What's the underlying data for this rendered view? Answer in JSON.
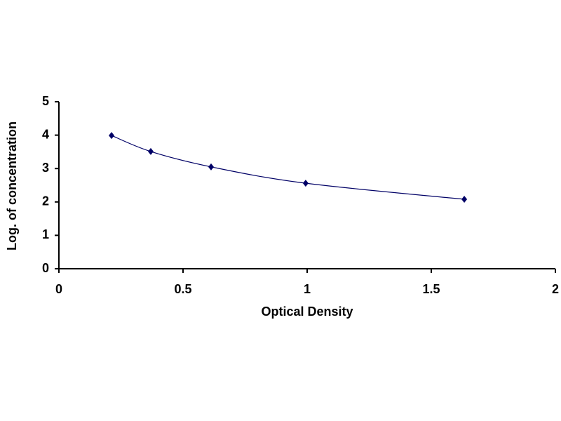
{
  "chart_data": {
    "type": "scatter",
    "line": "smooth",
    "x_label": "Optical Density",
    "y_label": "Log. of concentration",
    "x": [
      0.212,
      0.37,
      0.613,
      0.994,
      1.633
    ],
    "values": [
      3.99,
      3.51,
      3.05,
      2.56,
      2.08
    ],
    "color": "#000066",
    "xlim": [
      0,
      2
    ],
    "xticks": [
      0,
      0.5,
      1,
      1.5,
      2
    ],
    "ylim": [
      0,
      5
    ],
    "yticks": [
      0,
      1,
      2,
      3,
      4,
      5
    ],
    "grid": false
  }
}
